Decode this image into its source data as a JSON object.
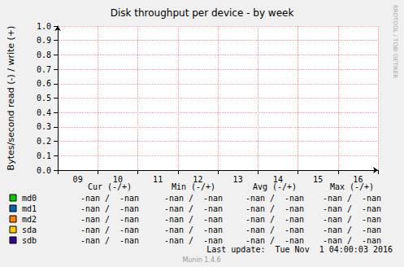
{
  "chart_data": {
    "type": "line",
    "title": "Disk throughput per device - by week",
    "y_label": "Bytes/second read (-) / write (+)",
    "categories": [
      "09",
      "10",
      "11",
      "12",
      "13",
      "14",
      "15",
      "16"
    ],
    "ylim": [
      0,
      1
    ],
    "yticks": [
      {
        "value": 0,
        "label": "0.0"
      },
      {
        "value": 0.1,
        "label": "0.1"
      },
      {
        "value": 0.2,
        "label": "0.2"
      },
      {
        "value": 0.3,
        "label": "0.3"
      },
      {
        "value": 0.4,
        "label": "0.4"
      },
      {
        "value": 0.5,
        "label": "0.5"
      },
      {
        "value": 0.6,
        "label": "0.6"
      },
      {
        "value": 0.7,
        "label": "0.7"
      },
      {
        "value": 0.8,
        "label": "0.8"
      },
      {
        "value": 0.9,
        "label": "0.9"
      },
      {
        "value": 1,
        "label": "1.0"
      }
    ],
    "grid": true,
    "legend_columns": [
      "Cur (-/+)",
      "Min (-/+)",
      "Avg (-/+)",
      "Max (-/+)"
    ],
    "series": [
      {
        "name": "md0",
        "color": "#00cc00",
        "values": [
          null,
          null,
          null,
          null,
          null,
          null,
          null,
          null
        ],
        "stats": [
          "-nan /  -nan",
          "-nan /  -nan",
          "-nan /  -nan",
          "-nan /  -nan"
        ]
      },
      {
        "name": "md1",
        "color": "#0066b3",
        "values": [
          null,
          null,
          null,
          null,
          null,
          null,
          null,
          null
        ],
        "stats": [
          "-nan /  -nan",
          "-nan /  -nan",
          "-nan /  -nan",
          "-nan /  -nan"
        ]
      },
      {
        "name": "md2",
        "color": "#ff8000",
        "values": [
          null,
          null,
          null,
          null,
          null,
          null,
          null,
          null
        ],
        "stats": [
          "-nan /  -nan",
          "-nan /  -nan",
          "-nan /  -nan",
          "-nan /  -nan"
        ]
      },
      {
        "name": "sda",
        "color": "#ffcc00",
        "values": [
          null,
          null,
          null,
          null,
          null,
          null,
          null,
          null
        ],
        "stats": [
          "-nan /  -nan",
          "-nan /  -nan",
          "-nan /  -nan",
          "-nan /  -nan"
        ]
      },
      {
        "name": "sdb",
        "color": "#330099",
        "values": [
          null,
          null,
          null,
          null,
          null,
          null,
          null,
          null
        ],
        "stats": [
          "-nan /  -nan",
          "-nan /  -nan",
          "-nan /  -nan",
          "-nan /  -nan"
        ]
      }
    ],
    "last_update": "Last update:  Tue Nov  1 04:00:03 2016",
    "footer": "Munin 1.4.6",
    "watermark": "RRDTOOL / TOBI OETIKER"
  }
}
